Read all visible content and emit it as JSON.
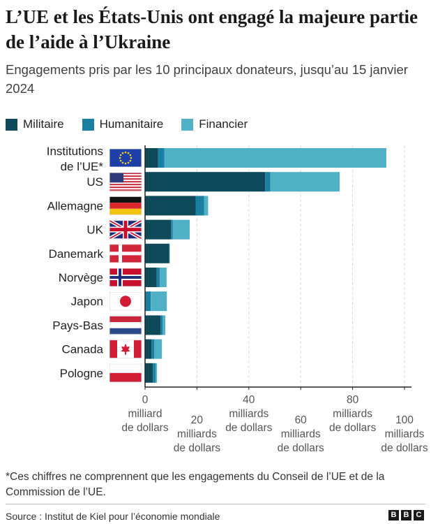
{
  "title": "L’UE et les États-Unis ont engagé la majeure partie de l’aide à l’Ukraine",
  "subtitle": "Engagements pris par les 10 principaux donateurs, jusqu’au 15 janvier 2024",
  "legend": [
    {
      "name": "Militaire",
      "color": "#0e4a5a"
    },
    {
      "name": "Humanitaire",
      "color": "#1a7fa0"
    },
    {
      "name": "Financier",
      "color": "#4fb0c6"
    }
  ],
  "chart_data": {
    "type": "bar",
    "orientation": "horizontal",
    "stacked": true,
    "categories": [
      [
        "Institutions",
        "de l’UE*"
      ],
      [
        "US"
      ],
      [
        "Allemagne"
      ],
      [
        "UK"
      ],
      [
        "Danemark"
      ],
      [
        "Norvège"
      ],
      [
        "Japon"
      ],
      [
        "Pays-Bas"
      ],
      [
        "Canada"
      ],
      [
        "Pologne"
      ]
    ],
    "flags": [
      "eu",
      "us",
      "de",
      "uk",
      "dk",
      "no",
      "jp",
      "nl",
      "ca",
      "pl"
    ],
    "series": [
      {
        "name": "Militaire",
        "color": "#0e4a5a",
        "values": [
          5.0,
          46.3,
          19.5,
          10.0,
          9.3,
          4.5,
          0.2,
          6.0,
          2.5,
          3.0
        ]
      },
      {
        "name": "Humanitaire",
        "color": "#1a7fa0",
        "values": [
          2.4,
          2.0,
          3.3,
          0.7,
          0.2,
          1.2,
          2.0,
          0.8,
          1.0,
          1.1
        ]
      },
      {
        "name": "Financier",
        "color": "#4fb0c6",
        "values": [
          85.6,
          26.7,
          1.5,
          6.5,
          0.0,
          2.6,
          6.2,
          1.0,
          3.0,
          0.5
        ]
      }
    ],
    "xlim": [
      0,
      100
    ],
    "x_ticks": [
      {
        "value": 0,
        "lines": [
          "0",
          "milliard",
          "de dollars"
        ]
      },
      {
        "value": 20,
        "lines": [
          "20",
          "milliards",
          "de dollars"
        ]
      },
      {
        "value": 40,
        "lines": [
          "40",
          "milliards",
          "de dollars"
        ]
      },
      {
        "value": 60,
        "lines": [
          "60",
          "milliards",
          "de dollars"
        ]
      },
      {
        "value": 80,
        "lines": [
          "80",
          "milliards",
          "de dollars"
        ]
      },
      {
        "value": 100,
        "lines": [
          "100",
          "milliards",
          "de dollars"
        ]
      }
    ],
    "grid": true
  },
  "footnote": "*Ces chiffres ne comprennent que les engagements du Conseil de l’UE et de la Commission de l’UE.",
  "source": "Source : Institut de Kiel pour l’économie mondiale",
  "logo_letters": [
    "B",
    "B",
    "C"
  ]
}
